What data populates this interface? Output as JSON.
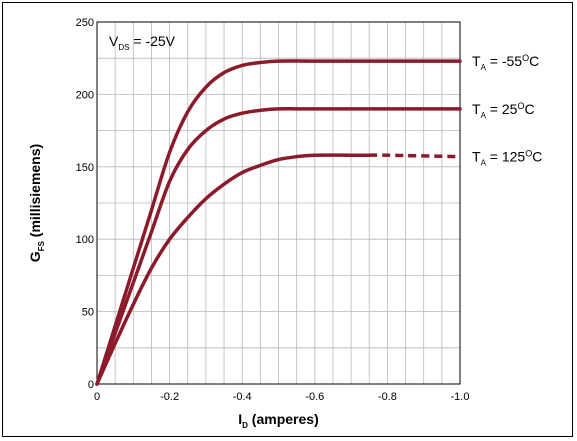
{
  "chart_data": {
    "type": "line",
    "xlabel": {
      "main": "I",
      "sub": "D",
      "rest": " (amperes)"
    },
    "ylabel": {
      "main": "G",
      "sub": "FS",
      "rest": " (millisiemens)"
    },
    "x_ticks": [
      "0",
      "-0.2",
      "-0.4",
      "-0.6",
      "-0.8",
      "-1.0"
    ],
    "y_ticks": [
      "0",
      "50",
      "100",
      "150",
      "200",
      "250"
    ],
    "xlim": [
      0,
      -1.0
    ],
    "ylim": [
      0,
      250
    ],
    "grid": true,
    "condition": {
      "main": "V",
      "sub": "DS",
      "rest": " = -25V"
    },
    "series": [
      {
        "label": {
          "main": "T",
          "sub": "A",
          "rest": " = -55",
          "sup": "O",
          "tail": "C"
        },
        "color": "#8b1a2b",
        "points": [
          [
            0,
            0
          ],
          [
            -0.05,
            40
          ],
          [
            -0.1,
            80
          ],
          [
            -0.15,
            120
          ],
          [
            -0.2,
            160
          ],
          [
            -0.25,
            188
          ],
          [
            -0.3,
            205
          ],
          [
            -0.35,
            215
          ],
          [
            -0.4,
            220
          ],
          [
            -0.45,
            222
          ],
          [
            -0.5,
            223
          ],
          [
            -0.6,
            223
          ],
          [
            -0.8,
            223
          ],
          [
            -1.0,
            223
          ]
        ]
      },
      {
        "label": {
          "main": "T",
          "sub": "A",
          "rest": " = 25",
          "sup": "O",
          "tail": "C"
        },
        "color": "#8b1a2b",
        "points": [
          [
            0,
            0
          ],
          [
            -0.05,
            35
          ],
          [
            -0.1,
            70
          ],
          [
            -0.15,
            105
          ],
          [
            -0.2,
            140
          ],
          [
            -0.25,
            162
          ],
          [
            -0.3,
            175
          ],
          [
            -0.35,
            183
          ],
          [
            -0.4,
            187
          ],
          [
            -0.45,
            189
          ],
          [
            -0.5,
            190
          ],
          [
            -0.6,
            190
          ],
          [
            -0.8,
            190
          ],
          [
            -1.0,
            190
          ]
        ]
      },
      {
        "label": {
          "main": "T",
          "sub": "A",
          "rest": " = 125",
          "sup": "O",
          "tail": "C"
        },
        "color": "#8b1a2b",
        "dashed_from": -0.75,
        "points": [
          [
            0,
            0
          ],
          [
            -0.05,
            28
          ],
          [
            -0.1,
            55
          ],
          [
            -0.15,
            80
          ],
          [
            -0.2,
            100
          ],
          [
            -0.25,
            115
          ],
          [
            -0.3,
            128
          ],
          [
            -0.35,
            138
          ],
          [
            -0.4,
            146
          ],
          [
            -0.45,
            151
          ],
          [
            -0.5,
            155
          ],
          [
            -0.55,
            157
          ],
          [
            -0.6,
            158
          ],
          [
            -0.7,
            158
          ],
          [
            -0.75,
            158
          ],
          [
            -0.8,
            158
          ],
          [
            -1.0,
            157
          ]
        ]
      }
    ]
  }
}
